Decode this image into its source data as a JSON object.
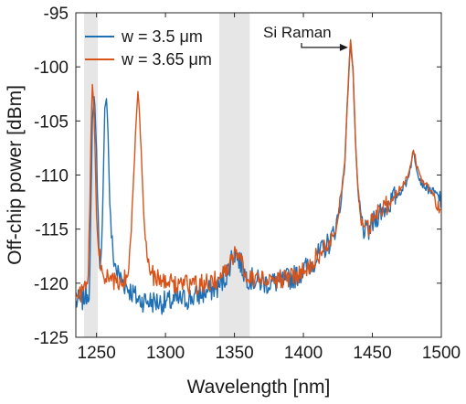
{
  "chart_data": {
    "type": "line",
    "title": "",
    "xlabel": "Wavelength [nm]",
    "ylabel": "Off-chip power [dBm]",
    "xlim": [
      1235,
      1500
    ],
    "ylim": [
      -125,
      -95
    ],
    "xticks": [
      1250,
      1300,
      1350,
      1400,
      1450,
      1500
    ],
    "yticks": [
      -95,
      -100,
      -105,
      -110,
      -115,
      -120,
      -125
    ],
    "xtick_labels": [
      "1250",
      "1300",
      "1350",
      "1400",
      "1450",
      "1500"
    ],
    "ytick_labels": [
      "-95",
      "-100",
      "-105",
      "-110",
      "-115",
      "-120",
      "-125"
    ],
    "grid": false,
    "legend_position": "top-left",
    "shaded_bands": [
      {
        "x0": 1241,
        "x1": 1251,
        "color": "#e6e6e6"
      },
      {
        "x0": 1339,
        "x1": 1361,
        "color": "#e6e6e6"
      }
    ],
    "annotations": [
      {
        "text": "Si Raman",
        "point_x": 1433,
        "point_y": -98.2
      }
    ],
    "series": [
      {
        "name": "w = 3.5 μm",
        "color": "#1f6fb5",
        "noise": 1.1,
        "seed": 7,
        "points": [
          [
            1235,
            -121.8
          ],
          [
            1240,
            -121.5
          ],
          [
            1245,
            -120.5
          ],
          [
            1246,
            -113
          ],
          [
            1247,
            -105
          ],
          [
            1248,
            -102.6
          ],
          [
            1249,
            -103.8
          ],
          [
            1250,
            -108
          ],
          [
            1251,
            -113.5
          ],
          [
            1252,
            -117
          ],
          [
            1253,
            -118.5
          ],
          [
            1254,
            -116.5
          ],
          [
            1255,
            -110
          ],
          [
            1256,
            -104
          ],
          [
            1257,
            -102.4
          ],
          [
            1258,
            -104.5
          ],
          [
            1259,
            -109.5
          ],
          [
            1260,
            -114
          ],
          [
            1262,
            -117.5
          ],
          [
            1265,
            -119
          ],
          [
            1270,
            -120
          ],
          [
            1280,
            -121.5
          ],
          [
            1290,
            -121.7
          ],
          [
            1300,
            -121.8
          ],
          [
            1310,
            -121.6
          ],
          [
            1320,
            -121.3
          ],
          [
            1330,
            -120.8
          ],
          [
            1340,
            -120.2
          ],
          [
            1345,
            -119
          ],
          [
            1348,
            -117.6
          ],
          [
            1351,
            -117.2
          ],
          [
            1354,
            -118
          ],
          [
            1358,
            -119.3
          ],
          [
            1365,
            -119.8
          ],
          [
            1375,
            -120
          ],
          [
            1385,
            -119.8
          ],
          [
            1395,
            -119.3
          ],
          [
            1405,
            -118.3
          ],
          [
            1415,
            -116.8
          ],
          [
            1420,
            -116
          ],
          [
            1424,
            -114.5
          ],
          [
            1427,
            -112.5
          ],
          [
            1430,
            -109
          ],
          [
            1432,
            -103
          ],
          [
            1434,
            -97.5
          ],
          [
            1436,
            -100.5
          ],
          [
            1438,
            -108
          ],
          [
            1440,
            -112.5
          ],
          [
            1443,
            -114.8
          ],
          [
            1446,
            -115.5
          ],
          [
            1449,
            -114.8
          ],
          [
            1455,
            -113.4
          ],
          [
            1460,
            -113
          ],
          [
            1465,
            -112.2
          ],
          [
            1470,
            -111.6
          ],
          [
            1475,
            -110.6
          ],
          [
            1478,
            -109
          ],
          [
            1480,
            -107.9
          ],
          [
            1482,
            -109.2
          ],
          [
            1485,
            -110.6
          ],
          [
            1490,
            -111.3
          ],
          [
            1495,
            -111.6
          ],
          [
            1500,
            -112.3
          ]
        ]
      },
      {
        "name": "w = 3.65 μm",
        "color": "#d95319",
        "noise": 0.9,
        "seed": 21,
        "points": [
          [
            1235,
            -121.4
          ],
          [
            1240,
            -120.8
          ],
          [
            1244,
            -119.5
          ],
          [
            1245,
            -114
          ],
          [
            1246,
            -106
          ],
          [
            1247,
            -101.6
          ],
          [
            1248,
            -103.5
          ],
          [
            1249,
            -108
          ],
          [
            1250,
            -113.5
          ],
          [
            1252,
            -117.5
          ],
          [
            1255,
            -119.3
          ],
          [
            1260,
            -119.8
          ],
          [
            1265,
            -120
          ],
          [
            1270,
            -119.8
          ],
          [
            1273,
            -118.8
          ],
          [
            1275,
            -116
          ],
          [
            1277,
            -110
          ],
          [
            1279,
            -104
          ],
          [
            1280,
            -102.1
          ],
          [
            1281,
            -103.8
          ],
          [
            1283,
            -109.5
          ],
          [
            1285,
            -115.5
          ],
          [
            1288,
            -118.6
          ],
          [
            1292,
            -119.5
          ],
          [
            1300,
            -119.9
          ],
          [
            1310,
            -120.1
          ],
          [
            1320,
            -120.2
          ],
          [
            1330,
            -120
          ],
          [
            1340,
            -119.5
          ],
          [
            1345,
            -118.6
          ],
          [
            1348,
            -117.6
          ],
          [
            1351,
            -117.1
          ],
          [
            1354,
            -117.8
          ],
          [
            1358,
            -119.1
          ],
          [
            1365,
            -119.5
          ],
          [
            1375,
            -119.7
          ],
          [
            1385,
            -119.6
          ],
          [
            1395,
            -119.3
          ],
          [
            1405,
            -118.2
          ],
          [
            1415,
            -116.8
          ],
          [
            1420,
            -115.8
          ],
          [
            1424,
            -114.3
          ],
          [
            1427,
            -112.2
          ],
          [
            1430,
            -108.8
          ],
          [
            1432,
            -102.8
          ],
          [
            1434,
            -97.3
          ],
          [
            1436,
            -100.3
          ],
          [
            1438,
            -107.8
          ],
          [
            1440,
            -112.3
          ],
          [
            1443,
            -114.6
          ],
          [
            1446,
            -115.2
          ],
          [
            1449,
            -114.6
          ],
          [
            1455,
            -113.2
          ],
          [
            1460,
            -112.8
          ],
          [
            1465,
            -112
          ],
          [
            1470,
            -111.3
          ],
          [
            1475,
            -110.3
          ],
          [
            1478,
            -108.8
          ],
          [
            1480,
            -107.6
          ],
          [
            1482,
            -109
          ],
          [
            1485,
            -110.4
          ],
          [
            1490,
            -111
          ],
          [
            1495,
            -111.8
          ],
          [
            1500,
            -113.6
          ]
        ]
      }
    ]
  }
}
